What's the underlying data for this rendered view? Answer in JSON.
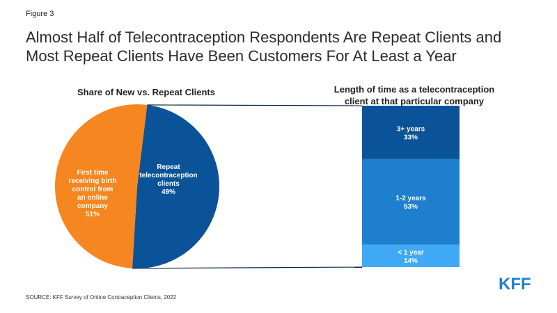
{
  "figure_label": "Figure 3",
  "title_lines": [
    "Almost Half of Telecontraception Respondents Are Repeat Clients and",
    "Most Repeat Clients Have Been Customers For At Least a Year"
  ],
  "colors": {
    "orange": "#f6861f",
    "navy": "#0a5398",
    "mid_blue": "#1f7fcf",
    "light_blue": "#3fa9f5",
    "brand": "#1f7fcf"
  },
  "source": "SOURCE: KFF Survey of Online Contraception Clients, 2022",
  "logo": "KFF",
  "chart_data": [
    {
      "type": "pie",
      "title": "Share of New vs. Repeat Clients",
      "slices": [
        {
          "label_lines": [
            "First time",
            "receiving birth",
            "control from",
            "an online",
            "company"
          ],
          "value": 51,
          "display": "51%",
          "color": "#f6861f"
        },
        {
          "label_lines": [
            "Repeat",
            "telecontraception",
            "clients"
          ],
          "value": 49,
          "display": "49%",
          "color": "#0a5398"
        }
      ]
    },
    {
      "type": "bar",
      "stacked": true,
      "title_lines": [
        "Length of time as a telecontraception",
        "client at that particular company"
      ],
      "segments": [
        {
          "label": "3+ years",
          "value": 33,
          "display": "33%",
          "color": "#0a5398"
        },
        {
          "label": "1-2 years",
          "value": 53,
          "display": "53%",
          "color": "#1f7fcf"
        },
        {
          "label": "< 1 year",
          "value": 14,
          "display": "14%",
          "color": "#3fa9f5"
        }
      ]
    }
  ]
}
